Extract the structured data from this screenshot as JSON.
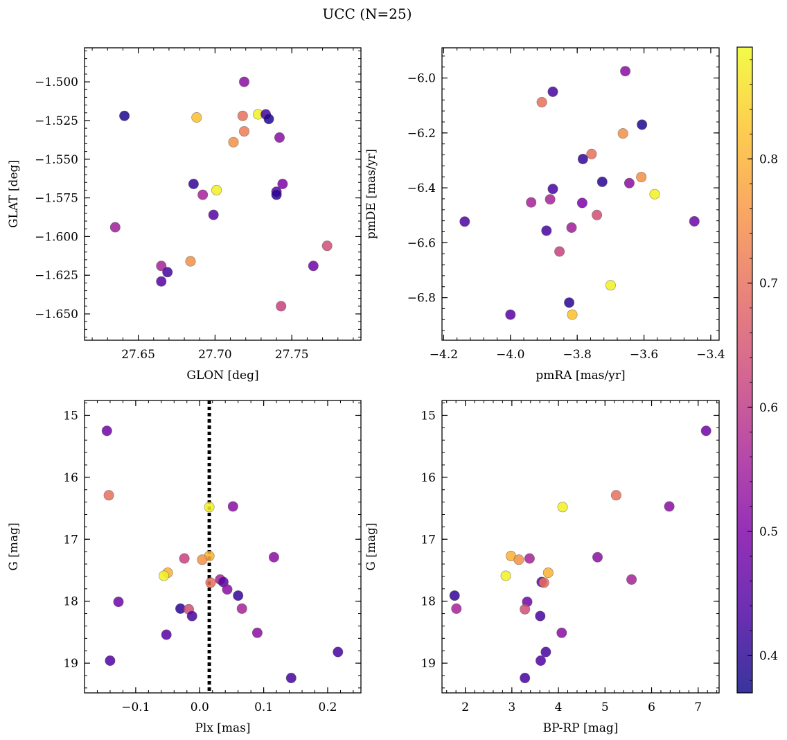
{
  "suptitle": "UCC (N=25)",
  "colorbar": {
    "min": 0.37,
    "max": 0.89,
    "ticks": [
      "0.4",
      "0.5",
      "0.6",
      "0.7",
      "0.8"
    ],
    "tick_values": [
      0.4,
      0.5,
      0.6,
      0.7,
      0.8
    ],
    "colormap": "plasma"
  },
  "chart_data": [
    {
      "type": "scatter",
      "name": "galactic-coordinates",
      "xlabel": "GLON [deg]",
      "ylabel": "GLAT [deg]",
      "xlim": [
        27.615,
        27.795
      ],
      "ylim": [
        -1.667,
        -1.478
      ],
      "y_inverted": false,
      "xticks": [
        27.65,
        27.7,
        27.75
      ],
      "xtick_labels": [
        "27.65",
        "27.70",
        "27.75"
      ],
      "yticks": [
        -1.5,
        -1.525,
        -1.55,
        -1.575,
        -1.6,
        -1.625,
        -1.65
      ],
      "ytick_labels": [
        "−1.500",
        "−1.525",
        "−1.550",
        "−1.575",
        "−1.600",
        "−1.625",
        "−1.650"
      ],
      "points": [
        {
          "x": 27.641,
          "y": -1.522,
          "c": 0.39
        },
        {
          "x": 27.719,
          "y": -1.5,
          "c": 0.52
        },
        {
          "x": 27.688,
          "y": -1.523,
          "c": 0.82
        },
        {
          "x": 27.718,
          "y": -1.522,
          "c": 0.7
        },
        {
          "x": 27.728,
          "y": -1.521,
          "c": 0.88
        },
        {
          "x": 27.733,
          "y": -1.521,
          "c": 0.43
        },
        {
          "x": 27.735,
          "y": -1.524,
          "c": 0.39
        },
        {
          "x": 27.719,
          "y": -1.532,
          "c": 0.72
        },
        {
          "x": 27.712,
          "y": -1.539,
          "c": 0.75
        },
        {
          "x": 27.742,
          "y": -1.536,
          "c": 0.52
        },
        {
          "x": 27.686,
          "y": -1.566,
          "c": 0.41
        },
        {
          "x": 27.701,
          "y": -1.57,
          "c": 0.88
        },
        {
          "x": 27.744,
          "y": -1.566,
          "c": 0.5
        },
        {
          "x": 27.692,
          "y": -1.573,
          "c": 0.56
        },
        {
          "x": 27.74,
          "y": -1.571,
          "c": 0.44
        },
        {
          "x": 27.74,
          "y": -1.573,
          "c": 0.4
        },
        {
          "x": 27.699,
          "y": -1.586,
          "c": 0.45
        },
        {
          "x": 27.635,
          "y": -1.594,
          "c": 0.55
        },
        {
          "x": 27.773,
          "y": -1.606,
          "c": 0.64
        },
        {
          "x": 27.684,
          "y": -1.616,
          "c": 0.75
        },
        {
          "x": 27.665,
          "y": -1.619,
          "c": 0.56
        },
        {
          "x": 27.764,
          "y": -1.619,
          "c": 0.48
        },
        {
          "x": 27.669,
          "y": -1.623,
          "c": 0.43
        },
        {
          "x": 27.665,
          "y": -1.629,
          "c": 0.45
        },
        {
          "x": 27.743,
          "y": -1.645,
          "c": 0.62
        }
      ]
    },
    {
      "type": "scatter",
      "name": "proper-motions",
      "xlabel": "pmRA [mas/yr]",
      "ylabel": "pmDE [mas/yr]",
      "xlim": [
        -4.205,
        -3.375
      ],
      "ylim": [
        -6.955,
        -5.89
      ],
      "y_inverted": false,
      "xticks": [
        -4.2,
        -4.0,
        -3.8,
        -3.6,
        -3.4
      ],
      "xtick_labels": [
        "−4.2",
        "−4.0",
        "−3.8",
        "−3.6",
        "−3.4"
      ],
      "yticks": [
        -6.0,
        -6.2,
        -6.4,
        -6.6,
        -6.8
      ],
      "ytick_labels": [
        "−6.0",
        "−6.2",
        "−6.4",
        "−6.6",
        "−6.8"
      ],
      "points": [
        {
          "x": -3.656,
          "y": -5.975,
          "c": 0.52
        },
        {
          "x": -3.873,
          "y": -6.05,
          "c": 0.43
        },
        {
          "x": -3.906,
          "y": -6.088,
          "c": 0.7
        },
        {
          "x": -3.606,
          "y": -6.17,
          "c": 0.39
        },
        {
          "x": -3.663,
          "y": -6.202,
          "c": 0.75
        },
        {
          "x": -3.757,
          "y": -6.277,
          "c": 0.7
        },
        {
          "x": -3.783,
          "y": -6.295,
          "c": 0.41
        },
        {
          "x": -3.725,
          "y": -6.378,
          "c": 0.4
        },
        {
          "x": -3.644,
          "y": -6.383,
          "c": 0.52
        },
        {
          "x": -3.608,
          "y": -6.361,
          "c": 0.75
        },
        {
          "x": -3.568,
          "y": -6.423,
          "c": 0.88
        },
        {
          "x": -3.873,
          "y": -6.404,
          "c": 0.43
        },
        {
          "x": -3.881,
          "y": -6.442,
          "c": 0.56
        },
        {
          "x": -3.938,
          "y": -6.453,
          "c": 0.56
        },
        {
          "x": -3.785,
          "y": -6.455,
          "c": 0.5
        },
        {
          "x": -3.741,
          "y": -6.499,
          "c": 0.64
        },
        {
          "x": -4.137,
          "y": -6.523,
          "c": 0.44
        },
        {
          "x": -3.449,
          "y": -6.522,
          "c": 0.48
        },
        {
          "x": -3.817,
          "y": -6.545,
          "c": 0.55
        },
        {
          "x": -3.892,
          "y": -6.556,
          "c": 0.43
        },
        {
          "x": -3.853,
          "y": -6.632,
          "c": 0.62
        },
        {
          "x": -3.7,
          "y": -6.755,
          "c": 0.88
        },
        {
          "x": -3.824,
          "y": -6.818,
          "c": 0.4
        },
        {
          "x": -4.0,
          "y": -6.862,
          "c": 0.45
        },
        {
          "x": -3.815,
          "y": -6.862,
          "c": 0.82
        }
      ]
    },
    {
      "type": "scatter",
      "name": "parallax-magnitude",
      "xlabel": "Plx [mas]",
      "ylabel": "G [mag]",
      "xlim": [
        -0.18,
        0.252
      ],
      "ylim": [
        19.48,
        14.76
      ],
      "y_inverted": true,
      "vline": 0.015,
      "xticks": [
        -0.1,
        0.0,
        0.1,
        0.2
      ],
      "xtick_labels": [
        "−0.1",
        "0.0",
        "0.1",
        "0.2"
      ],
      "yticks": [
        15,
        16,
        17,
        18,
        19
      ],
      "ytick_labels": [
        "15",
        "16",
        "17",
        "18",
        "19"
      ],
      "points": [
        {
          "x": -0.145,
          "y": 15.25,
          "c": 0.48
        },
        {
          "x": -0.142,
          "y": 16.29,
          "c": 0.7
        },
        {
          "x": 0.015,
          "y": 16.48,
          "c": 0.88
        },
        {
          "x": 0.052,
          "y": 16.47,
          "c": 0.52
        },
        {
          "x": 0.015,
          "y": 17.27,
          "c": 0.8
        },
        {
          "x": -0.024,
          "y": 17.31,
          "c": 0.62
        },
        {
          "x": 0.004,
          "y": 17.33,
          "c": 0.75
        },
        {
          "x": 0.116,
          "y": 17.29,
          "c": 0.52
        },
        {
          "x": -0.05,
          "y": 17.54,
          "c": 0.8
        },
        {
          "x": -0.056,
          "y": 17.59,
          "c": 0.88
        },
        {
          "x": 0.032,
          "y": 17.65,
          "c": 0.56
        },
        {
          "x": 0.037,
          "y": 17.69,
          "c": 0.45
        },
        {
          "x": 0.017,
          "y": 17.7,
          "c": 0.7
        },
        {
          "x": 0.043,
          "y": 17.81,
          "c": 0.52
        },
        {
          "x": 0.06,
          "y": 17.91,
          "c": 0.41
        },
        {
          "x": -0.127,
          "y": 18.01,
          "c": 0.48
        },
        {
          "x": -0.03,
          "y": 18.12,
          "c": 0.4
        },
        {
          "x": -0.017,
          "y": 18.13,
          "c": 0.64
        },
        {
          "x": 0.066,
          "y": 18.12,
          "c": 0.56
        },
        {
          "x": -0.012,
          "y": 18.24,
          "c": 0.43
        },
        {
          "x": 0.09,
          "y": 18.51,
          "c": 0.52
        },
        {
          "x": -0.052,
          "y": 18.54,
          "c": 0.45
        },
        {
          "x": 0.216,
          "y": 18.82,
          "c": 0.43
        },
        {
          "x": -0.14,
          "y": 18.96,
          "c": 0.44
        },
        {
          "x": 0.143,
          "y": 19.24,
          "c": 0.43
        }
      ]
    },
    {
      "type": "scatter",
      "name": "color-magnitude",
      "xlabel": "BP-RP [mag]",
      "ylabel": "G [mag]",
      "xlim": [
        1.5,
        7.45
      ],
      "ylim": [
        19.48,
        14.76
      ],
      "y_inverted": true,
      "xticks": [
        2,
        3,
        4,
        5,
        6,
        7
      ],
      "xtick_labels": [
        "2",
        "3",
        "4",
        "5",
        "6",
        "7"
      ],
      "yticks": [
        15,
        16,
        17,
        18,
        19
      ],
      "ytick_labels": [
        "15",
        "16",
        "17",
        "18",
        "19"
      ],
      "points": [
        {
          "x": 7.17,
          "y": 15.25,
          "c": 0.48
        },
        {
          "x": 5.24,
          "y": 16.29,
          "c": 0.7
        },
        {
          "x": 4.09,
          "y": 16.48,
          "c": 0.88
        },
        {
          "x": 6.38,
          "y": 16.47,
          "c": 0.52
        },
        {
          "x": 2.98,
          "y": 17.27,
          "c": 0.8
        },
        {
          "x": 3.15,
          "y": 17.33,
          "c": 0.75
        },
        {
          "x": 3.38,
          "y": 17.31,
          "c": 0.56
        },
        {
          "x": 4.84,
          "y": 17.29,
          "c": 0.52
        },
        {
          "x": 3.78,
          "y": 17.54,
          "c": 0.8
        },
        {
          "x": 2.87,
          "y": 17.59,
          "c": 0.88
        },
        {
          "x": 5.57,
          "y": 17.65,
          "c": 0.56
        },
        {
          "x": 3.64,
          "y": 17.69,
          "c": 0.45
        },
        {
          "x": 3.69,
          "y": 17.7,
          "c": 0.7
        },
        {
          "x": 1.77,
          "y": 17.91,
          "c": 0.41
        },
        {
          "x": 3.33,
          "y": 18.01,
          "c": 0.48
        },
        {
          "x": 1.81,
          "y": 18.12,
          "c": 0.56
        },
        {
          "x": 3.28,
          "y": 18.13,
          "c": 0.64
        },
        {
          "x": 3.61,
          "y": 18.24,
          "c": 0.43
        },
        {
          "x": 4.07,
          "y": 18.51,
          "c": 0.52
        },
        {
          "x": 3.73,
          "y": 18.82,
          "c": 0.43
        },
        {
          "x": 3.62,
          "y": 18.96,
          "c": 0.44
        },
        {
          "x": 3.28,
          "y": 19.24,
          "c": 0.43
        }
      ]
    }
  ]
}
